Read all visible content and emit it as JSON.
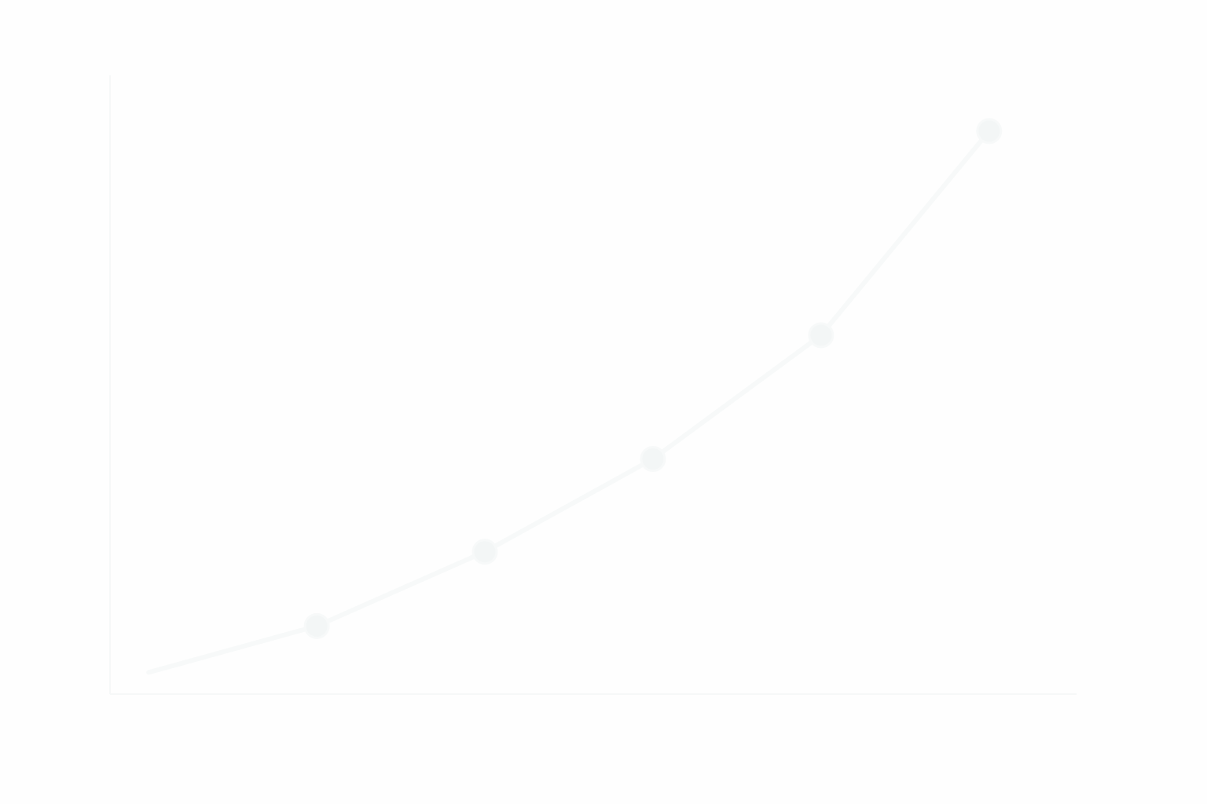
{
  "chart_data": {
    "type": "line",
    "title": "",
    "xlabel": "",
    "ylabel": "",
    "x": [
      0,
      1,
      2,
      3,
      4,
      5
    ],
    "series": [
      {
        "values": [
          0.35,
          1.1,
          2.3,
          3.8,
          5.8,
          9.1
        ],
        "color": "#f7f9f9",
        "marker_color": "#f3f6f6"
      }
    ],
    "xlim": [
      -0.23,
      5.52
    ],
    "ylim": [
      0,
      10
    ],
    "grid": false,
    "legend": "none",
    "axis_color": "#f6f8f8",
    "background": "#fefefe"
  }
}
